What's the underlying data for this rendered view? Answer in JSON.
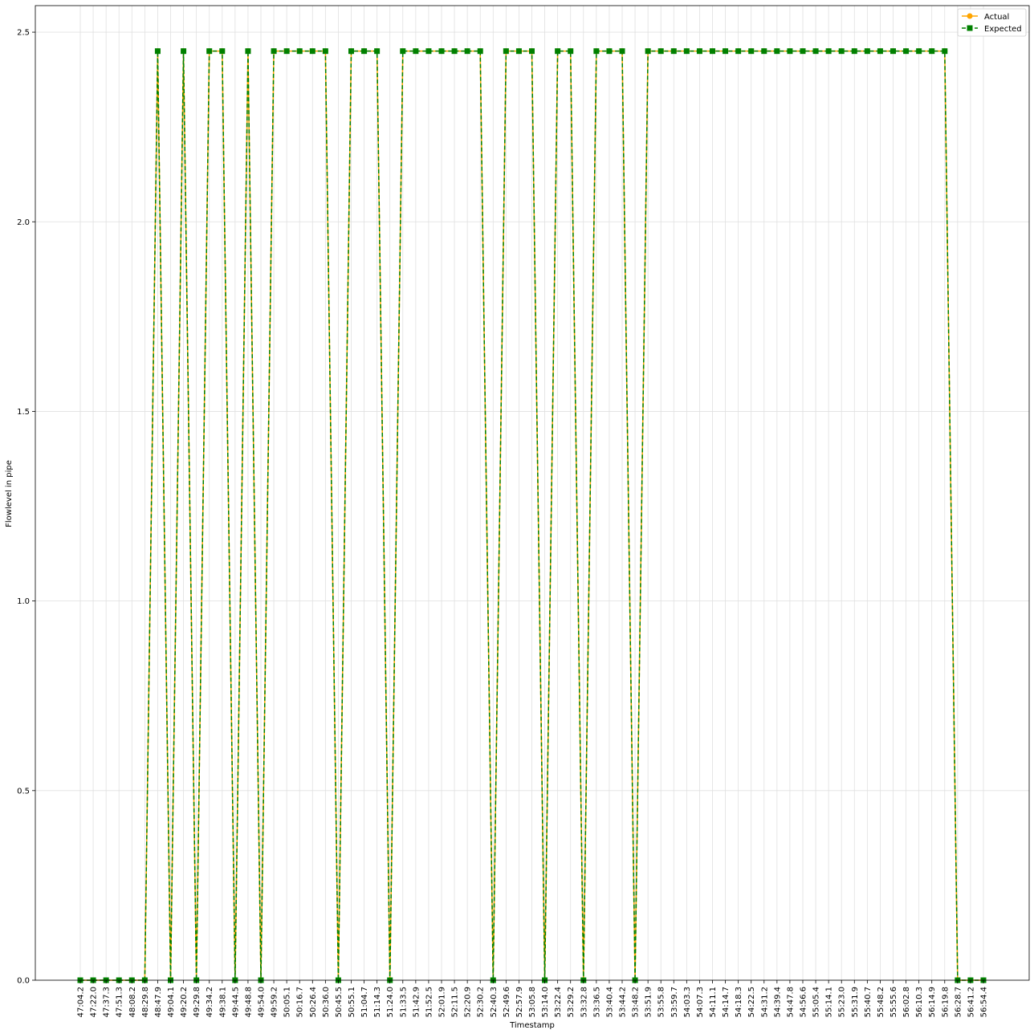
{
  "chart_data": {
    "type": "line",
    "title": "",
    "xlabel": "Timestamp",
    "ylabel": "Flowlevel in pipe",
    "ylim": [
      0,
      2.57
    ],
    "yticks": [
      "0.0",
      "0.5",
      "1.0",
      "1.5",
      "2.0",
      "2.5"
    ],
    "grid": true,
    "legend_position": "top-right",
    "categories": [
      "47:04.2",
      "47:22.0",
      "47:37.3",
      "47:51.3",
      "48:08.2",
      "48:29.8",
      "48:47.9",
      "49:04.1",
      "49:20.2",
      "49:29.8",
      "49:34.2",
      "49:38.1",
      "49:44.5",
      "49:48.8",
      "49:54.0",
      "49:59.2",
      "50:05.1",
      "50:16.7",
      "50:26.4",
      "50:36.0",
      "50:45.5",
      "50:55.1",
      "51:04.7",
      "51:14.3",
      "51:24.0",
      "51:33.5",
      "51:42.9",
      "51:52.5",
      "52:01.9",
      "52:11.5",
      "52:20.9",
      "52:30.2",
      "52:40.3",
      "52:49.6",
      "52:57.9",
      "53:05.8",
      "53:14.0",
      "53:22.4",
      "53:29.2",
      "53:32.8",
      "53:36.5",
      "53:40.4",
      "53:44.2",
      "53:48.2",
      "53:51.9",
      "53:55.8",
      "53:59.7",
      "54:03.3",
      "54:07.3",
      "54:11.1",
      "54:14.7",
      "54:18.3",
      "54:22.5",
      "54:31.2",
      "54:39.4",
      "54:47.8",
      "54:56.6",
      "55:05.4",
      "55:14.1",
      "55:23.0",
      "55:31.9",
      "55:40.7",
      "55:48.2",
      "55:55.6",
      "56:02.8",
      "56:10.3",
      "56:14.9",
      "56:19.8",
      "56:28.7",
      "56:41.2",
      "56:54.4"
    ],
    "series": [
      {
        "name": "Actual",
        "color": "#ffa500",
        "marker": "circle",
        "line_style": "solid",
        "values": [
          0,
          0,
          0,
          0,
          0,
          0,
          2.45,
          0,
          2.45,
          0,
          2.45,
          2.45,
          0,
          2.45,
          0,
          2.45,
          2.45,
          2.45,
          2.45,
          2.45,
          0,
          2.45,
          2.45,
          2.45,
          0,
          2.45,
          2.45,
          2.45,
          2.45,
          2.45,
          2.45,
          2.45,
          0,
          2.45,
          2.45,
          2.45,
          0,
          2.45,
          2.45,
          0,
          2.45,
          2.45,
          2.45,
          0,
          2.45,
          2.45,
          2.45,
          2.45,
          2.45,
          2.45,
          2.45,
          2.45,
          2.45,
          2.45,
          2.45,
          2.45,
          2.45,
          2.45,
          2.45,
          2.45,
          2.45,
          2.45,
          2.45,
          2.45,
          2.45,
          2.45,
          2.45,
          2.45,
          0,
          0,
          0
        ]
      },
      {
        "name": "Expected",
        "color": "#008000",
        "marker": "square",
        "line_style": "dashed",
        "values": [
          0,
          0,
          0,
          0,
          0,
          0,
          2.45,
          0,
          2.45,
          0,
          2.45,
          2.45,
          0,
          2.45,
          0,
          2.45,
          2.45,
          2.45,
          2.45,
          2.45,
          0,
          2.45,
          2.45,
          2.45,
          0,
          2.45,
          2.45,
          2.45,
          2.45,
          2.45,
          2.45,
          2.45,
          0,
          2.45,
          2.45,
          2.45,
          0,
          2.45,
          2.45,
          0,
          2.45,
          2.45,
          2.45,
          0,
          2.45,
          2.45,
          2.45,
          2.45,
          2.45,
          2.45,
          2.45,
          2.45,
          2.45,
          2.45,
          2.45,
          2.45,
          2.45,
          2.45,
          2.45,
          2.45,
          2.45,
          2.45,
          2.45,
          2.45,
          2.45,
          2.45,
          2.45,
          2.45,
          0,
          0,
          0
        ]
      }
    ]
  }
}
